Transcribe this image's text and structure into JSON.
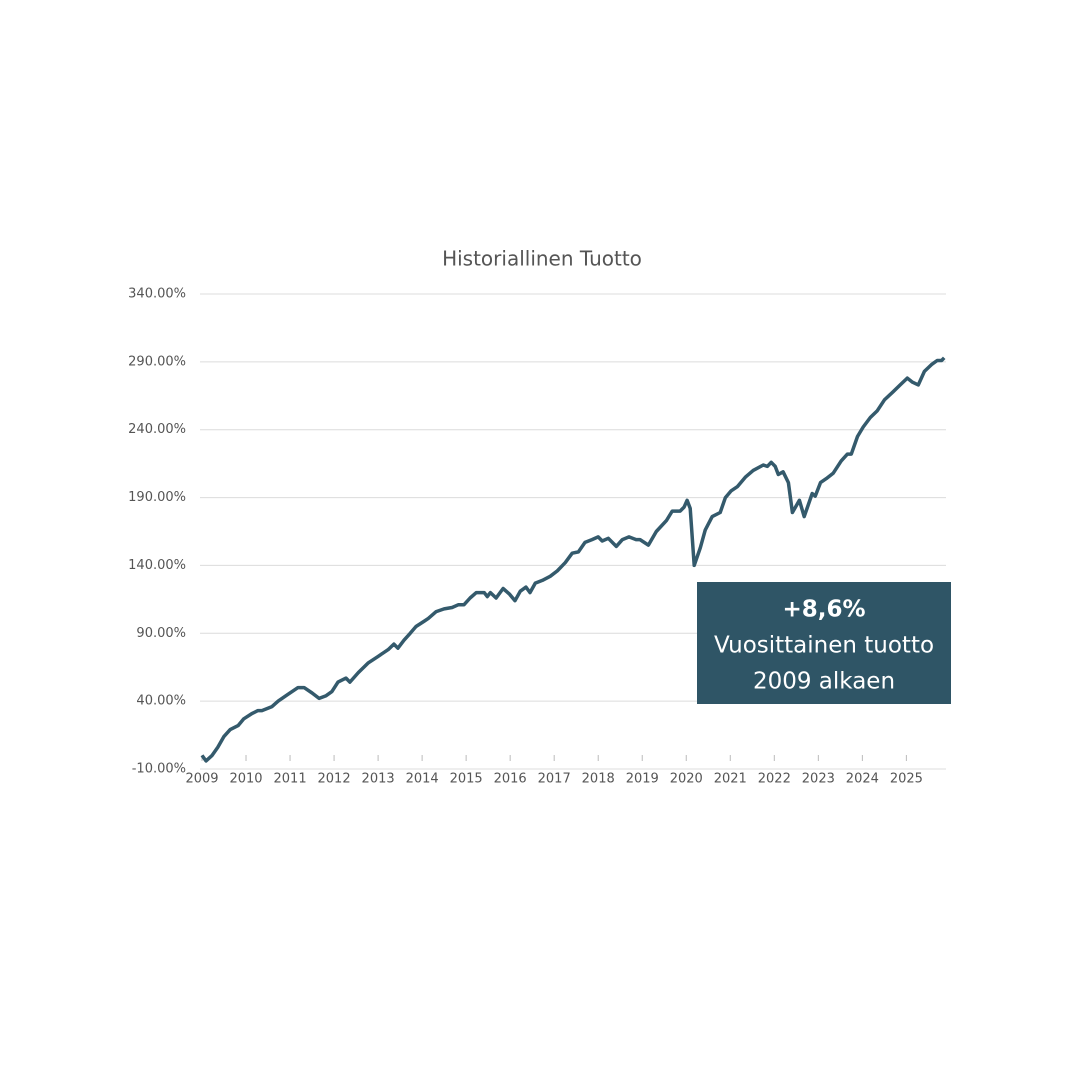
{
  "chart_data": {
    "type": "line",
    "title": "Historiallinen Tuotto",
    "x": [
      2009.0,
      2009.09,
      2009.23,
      2009.36,
      2009.5,
      2009.64,
      2009.82,
      2009.95,
      2010.14,
      2010.27,
      2010.36,
      2010.59,
      2010.73,
      2010.95,
      2011.18,
      2011.32,
      2011.5,
      2011.66,
      2011.82,
      2011.95,
      2012.09,
      2012.27,
      2012.36,
      2012.55,
      2012.77,
      2013.0,
      2013.23,
      2013.36,
      2013.45,
      2013.59,
      2013.73,
      2013.86,
      2014.05,
      2014.14,
      2014.32,
      2014.5,
      2014.68,
      2014.82,
      2014.95,
      2015.09,
      2015.23,
      2015.41,
      2015.48,
      2015.55,
      2015.68,
      2015.84,
      2015.98,
      2016.11,
      2016.23,
      2016.36,
      2016.45,
      2016.57,
      2016.73,
      2016.91,
      2017.07,
      2017.25,
      2017.41,
      2017.55,
      2017.7,
      2017.86,
      2018.0,
      2018.09,
      2018.23,
      2018.41,
      2018.55,
      2018.7,
      2018.86,
      2018.95,
      2019.14,
      2019.32,
      2019.55,
      2019.68,
      2019.86,
      2019.95,
      2020.02,
      2020.09,
      2020.18,
      2020.32,
      2020.43,
      2020.59,
      2020.77,
      2020.89,
      2021.02,
      2021.16,
      2021.34,
      2021.52,
      2021.75,
      2021.84,
      2021.93,
      2022.02,
      2022.09,
      2022.2,
      2022.32,
      2022.41,
      2022.57,
      2022.68,
      2022.86,
      2022.93,
      2023.05,
      2023.18,
      2023.34,
      2023.52,
      2023.66,
      2023.75,
      2023.89,
      2024.02,
      2024.18,
      2024.34,
      2024.5,
      2024.7,
      2024.86,
      2025.02,
      2025.14,
      2025.27,
      2025.41,
      2025.57,
      2025.7,
      2025.8,
      2025.86
    ],
    "series": [
      {
        "color": "#345a6c",
        "values": [
          0,
          -4,
          0,
          6,
          14,
          19,
          22,
          27,
          31,
          33,
          33,
          36,
          40,
          45,
          50,
          50,
          46,
          42,
          44,
          47,
          54,
          57,
          54,
          61,
          68,
          73,
          78,
          82,
          79,
          85,
          90,
          95,
          99,
          101,
          106,
          108,
          109,
          111,
          111,
          116,
          120,
          120,
          117,
          120,
          116,
          123,
          119,
          114,
          121,
          124,
          120,
          127,
          129,
          132,
          136,
          142,
          149,
          150,
          157,
          159,
          161,
          158,
          160,
          154,
          159,
          161,
          159,
          159,
          155,
          165,
          173,
          180,
          180,
          183,
          188,
          182,
          140,
          153,
          166,
          176,
          179,
          190,
          195,
          198,
          205,
          210,
          214,
          213,
          216,
          213,
          207,
          209,
          201,
          179,
          188,
          176,
          193,
          191,
          201,
          204,
          208,
          217,
          222,
          222,
          235,
          242,
          249,
          254,
          262,
          268,
          273,
          278,
          275,
          273,
          283,
          288,
          291,
          291,
          293
        ]
      }
    ],
    "xlim": [
      2009,
      2025.9
    ],
    "xticks": [
      2009,
      2010,
      2011,
      2012,
      2013,
      2014,
      2015,
      2016,
      2017,
      2018,
      2019,
      2020,
      2021,
      2022,
      2023,
      2024,
      2025
    ],
    "ylim": [
      -10,
      340
    ],
    "yticks": [
      {
        "value": -10,
        "label": "-10.00%"
      },
      {
        "value": 40,
        "label": "40.00%"
      },
      {
        "value": 90,
        "label": "90.00%"
      },
      {
        "value": 140,
        "label": "140.00%"
      },
      {
        "value": 190,
        "label": "190.00%"
      },
      {
        "value": 240,
        "label": "240.00%"
      },
      {
        "value": 290,
        "label": "290.00%"
      },
      {
        "value": 340,
        "label": "340.00%"
      }
    ],
    "grid": true,
    "annotation": {
      "lines": [
        "+8,6%",
        "Vuosittainen tuotto",
        "2009 alkaen"
      ],
      "color": "#2f5566"
    }
  }
}
